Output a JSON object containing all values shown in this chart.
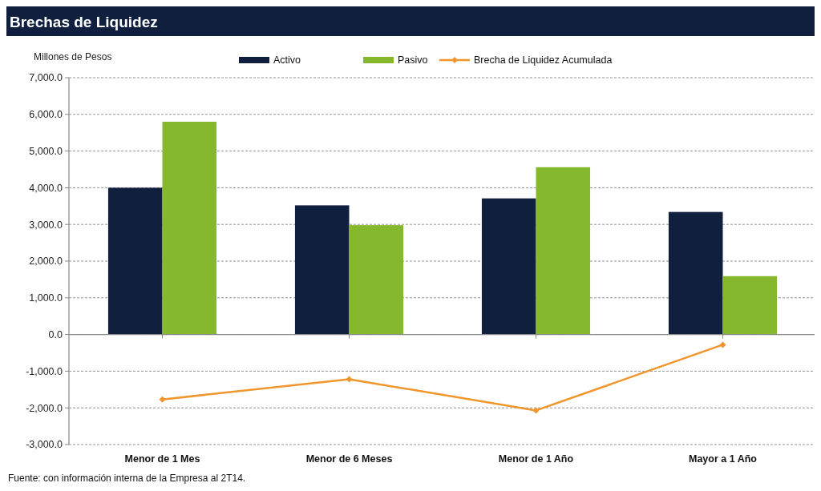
{
  "chart_data": {
    "type": "bar",
    "title": "Brechas de Liquidez",
    "ylabel": "Millones de Pesos",
    "categories": [
      "Menor de 1 Mes",
      "Menor de 6 Meses",
      "Menor de 1 Año",
      "Mayor a 1 Año"
    ],
    "series": [
      {
        "name": "Activo",
        "color": "#0f1f3d",
        "values": [
          4000,
          3520,
          3710,
          3340
        ]
      },
      {
        "name": "Pasivo",
        "color": "#86b82e",
        "values": [
          5800,
          2980,
          4560,
          1590
        ]
      },
      {
        "name": "Brecha de Liquidez Acumulada",
        "type": "line",
        "color": "#f0962d",
        "values": [
          -1770,
          -1220,
          -2070,
          -280
        ],
        "marker": "diamond"
      }
    ],
    "ylim": [
      -3000,
      7000
    ],
    "yticks": [
      {
        "value": -3000,
        "label": "-3,000.0"
      },
      {
        "value": -2000,
        "label": "-2,000.0"
      },
      {
        "value": -1000,
        "label": "-1,000.0"
      },
      {
        "value": 0,
        "label": "0.0"
      },
      {
        "value": 1000,
        "label": "1,000.0"
      },
      {
        "value": 2000,
        "label": "2,000.0"
      },
      {
        "value": 3000,
        "label": "3,000.0"
      },
      {
        "value": 4000,
        "label": "4,000.0"
      },
      {
        "value": 5000,
        "label": "5,000.0"
      },
      {
        "value": 6000,
        "label": "6,000.0"
      },
      {
        "value": 7000,
        "label": "7,000.0"
      }
    ],
    "grid": "y",
    "legend": "top",
    "annotations": [
      "Fuente: con información interna de la Empresa al 2T14."
    ]
  }
}
